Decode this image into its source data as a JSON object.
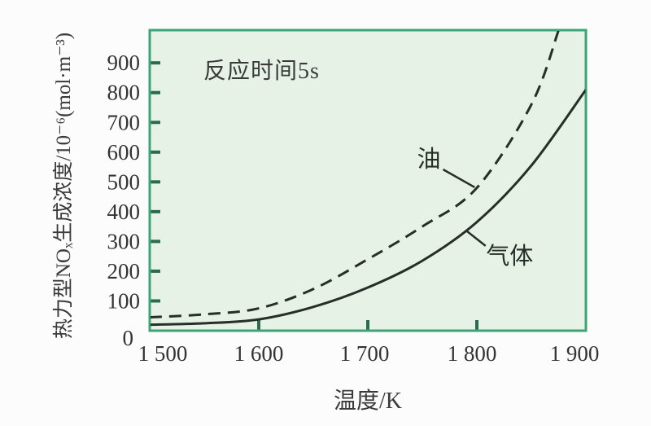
{
  "chart_data": {
    "type": "line",
    "title": "",
    "annotation": {
      "text": "反应时间5s"
    },
    "xlabel": "温度/K",
    "ylabel": "热力型NOₓ生成浓度/10⁻⁶(mol·m⁻³)",
    "xlim": [
      1500,
      1900
    ],
    "ylim": [
      0,
      1010
    ],
    "grid": false,
    "legend_position": "inline-labels",
    "x_ticks": [
      {
        "value": 1500,
        "label": "1 500",
        "tick": false,
        "dx": 16
      },
      {
        "value": 1600,
        "label": "1 600",
        "tick": true,
        "dx": 0
      },
      {
        "value": 1700,
        "label": "1 700",
        "tick": true,
        "dx": -4
      },
      {
        "value": 1800,
        "label": "1 800",
        "tick": true,
        "dx": -6
      },
      {
        "value": 1900,
        "label": "1 900",
        "tick": false,
        "dx": -14
      }
    ],
    "y_ticks": [
      {
        "value": 0,
        "label": "0",
        "tick": false,
        "dx": -8,
        "dy": 9
      },
      {
        "value": 100,
        "label": "100",
        "tick": true,
        "dx": 0,
        "dy": 0
      },
      {
        "value": 200,
        "label": "200",
        "tick": true,
        "dx": 0,
        "dy": 0
      },
      {
        "value": 300,
        "label": "300",
        "tick": true,
        "dx": 0,
        "dy": 0
      },
      {
        "value": 400,
        "label": "400",
        "tick": true,
        "dx": 0,
        "dy": 0
      },
      {
        "value": 500,
        "label": "500",
        "tick": true,
        "dx": 0,
        "dy": 0
      },
      {
        "value": 600,
        "label": "600",
        "tick": true,
        "dx": 0,
        "dy": 0
      },
      {
        "value": 700,
        "label": "700",
        "tick": true,
        "dx": 0,
        "dy": 0
      },
      {
        "value": 800,
        "label": "800",
        "tick": true,
        "dx": 0,
        "dy": 0
      },
      {
        "value": 900,
        "label": "900",
        "tick": true,
        "dx": 0,
        "dy": 0
      }
    ],
    "series": [
      {
        "id": "gas",
        "name": "气体",
        "line_style": "solid",
        "x": [
          1500,
          1550,
          1600,
          1650,
          1700,
          1750,
          1800,
          1850,
          1900
        ],
        "values": [
          20,
          25,
          38,
          80,
          145,
          235,
          365,
          555,
          810
        ],
        "label": {
          "x": 1830,
          "y": 249,
          "leader": [
            [
              1790,
              337
            ],
            [
              1808,
              285
            ]
          ]
        }
      },
      {
        "id": "oil",
        "name": "油",
        "line_style": "dashed",
        "x": [
          1500,
          1550,
          1600,
          1650,
          1700,
          1750,
          1800,
          1850,
          1875
        ],
        "values": [
          45,
          55,
          75,
          140,
          240,
          350,
          480,
          760,
          1010
        ],
        "label": {
          "x": 1756,
          "y": 575,
          "leader": [
            [
              1769,
              542
            ],
            [
              1798,
              482
            ]
          ]
        }
      }
    ],
    "colors": {
      "plot_bg": "#e6f2e6",
      "border": "#3ea377",
      "tick": "#2a6b4f",
      "line": "#262e28",
      "text": "#333333"
    }
  }
}
